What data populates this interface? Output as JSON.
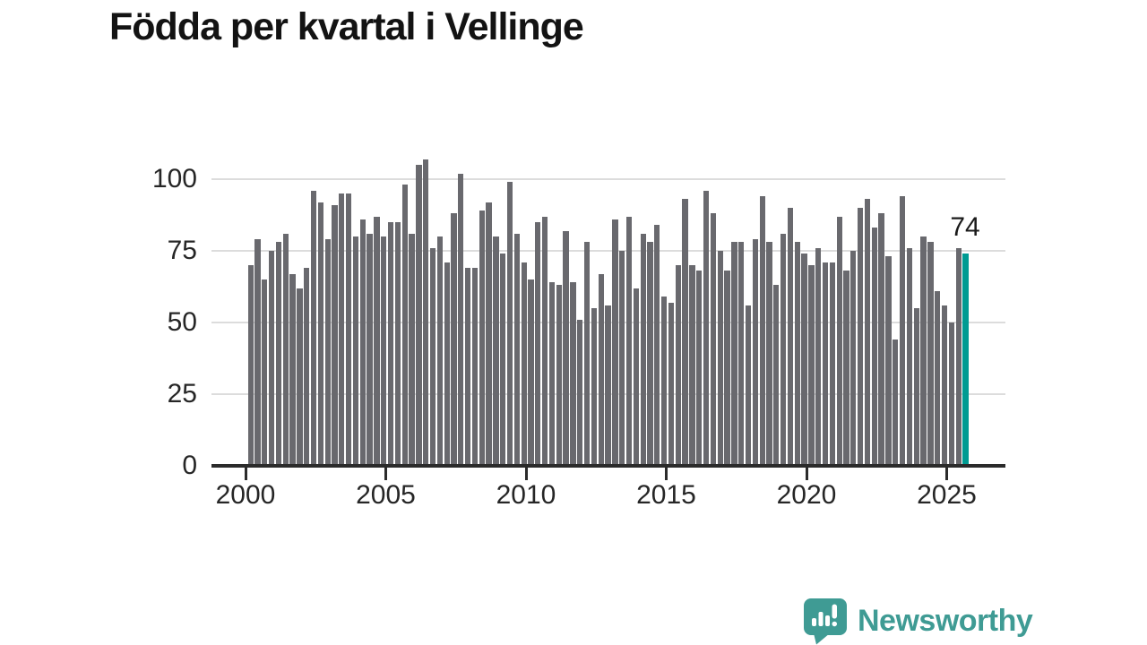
{
  "title": "Födda per kvartal i Vellinge",
  "chart_data": {
    "type": "bar",
    "title": "Födda per kvartal i Vellinge",
    "x": [
      "2000 Q1",
      "2000 Q2",
      "2000 Q3",
      "2000 Q4",
      "2001 Q1",
      "2001 Q2",
      "2001 Q3",
      "2001 Q4",
      "2002 Q1",
      "2002 Q2",
      "2002 Q3",
      "2002 Q4",
      "2003 Q1",
      "2003 Q2",
      "2003 Q3",
      "2003 Q4",
      "2004 Q1",
      "2004 Q2",
      "2004 Q3",
      "2004 Q4",
      "2005 Q1",
      "2005 Q2",
      "2005 Q3",
      "2005 Q4",
      "2006 Q1",
      "2006 Q2",
      "2006 Q3",
      "2006 Q4",
      "2007 Q1",
      "2007 Q2",
      "2007 Q3",
      "2007 Q4",
      "2008 Q1",
      "2008 Q2",
      "2008 Q3",
      "2008 Q4",
      "2009 Q1",
      "2009 Q2",
      "2009 Q3",
      "2009 Q4",
      "2010 Q1",
      "2010 Q2",
      "2010 Q3",
      "2010 Q4",
      "2011 Q1",
      "2011 Q2",
      "2011 Q3",
      "2011 Q4",
      "2012 Q1",
      "2012 Q2",
      "2012 Q3",
      "2012 Q4",
      "2013 Q1",
      "2013 Q2",
      "2013 Q3",
      "2013 Q4",
      "2014 Q1",
      "2014 Q2",
      "2014 Q3",
      "2014 Q4",
      "2015 Q1",
      "2015 Q2",
      "2015 Q3",
      "2015 Q4",
      "2016 Q1",
      "2016 Q2",
      "2016 Q3",
      "2016 Q4",
      "2017 Q1",
      "2017 Q2",
      "2017 Q3",
      "2017 Q4",
      "2018 Q1",
      "2018 Q2",
      "2018 Q3",
      "2018 Q4",
      "2019 Q1",
      "2019 Q2",
      "2019 Q3",
      "2019 Q4",
      "2020 Q1",
      "2020 Q2",
      "2020 Q3",
      "2020 Q4",
      "2021 Q1",
      "2021 Q2",
      "2021 Q3",
      "2021 Q4",
      "2022 Q1",
      "2022 Q2",
      "2022 Q3",
      "2022 Q4",
      "2023 Q1",
      "2023 Q2",
      "2023 Q3",
      "2023 Q4",
      "2024 Q1",
      "2024 Q2",
      "2024 Q3",
      "2024 Q4",
      "2025 Q1",
      "2025 Q2",
      "2025 Q3"
    ],
    "values": [
      70,
      79,
      65,
      75,
      78,
      81,
      67,
      62,
      69,
      96,
      92,
      79,
      91,
      95,
      95,
      80,
      86,
      81,
      87,
      80,
      85,
      85,
      98,
      81,
      105,
      107,
      76,
      80,
      71,
      88,
      102,
      69,
      69,
      89,
      92,
      80,
      74,
      99,
      81,
      71,
      65,
      85,
      87,
      64,
      63,
      82,
      64,
      51,
      78,
      55,
      67,
      56,
      86,
      75,
      87,
      62,
      81,
      78,
      84,
      59,
      57,
      70,
      93,
      70,
      68,
      96,
      88,
      75,
      68,
      78,
      78,
      56,
      79,
      94,
      78,
      63,
      81,
      90,
      78,
      74,
      70,
      76,
      71,
      71,
      87,
      68,
      75,
      90,
      93,
      83,
      88,
      73,
      44,
      94,
      76,
      55,
      80,
      78,
      61,
      56,
      50,
      76,
      74
    ],
    "highlight": {
      "index": 102,
      "period": "2025 Q3",
      "value": 74,
      "label": "74"
    },
    "bar_color": "#69696E",
    "highlight_color": "#009B92",
    "xlabel": "",
    "ylabel": "",
    "y_ticks": [
      0,
      25,
      50,
      75,
      100
    ],
    "x_ticks": [
      "2000",
      "2005",
      "2010",
      "2015",
      "2020",
      "2025"
    ],
    "ylim": [
      0,
      110
    ],
    "grid": true,
    "legend": false
  },
  "branding": {
    "logo_text": "Newsworthy",
    "logo_color": "#3F9B94"
  }
}
